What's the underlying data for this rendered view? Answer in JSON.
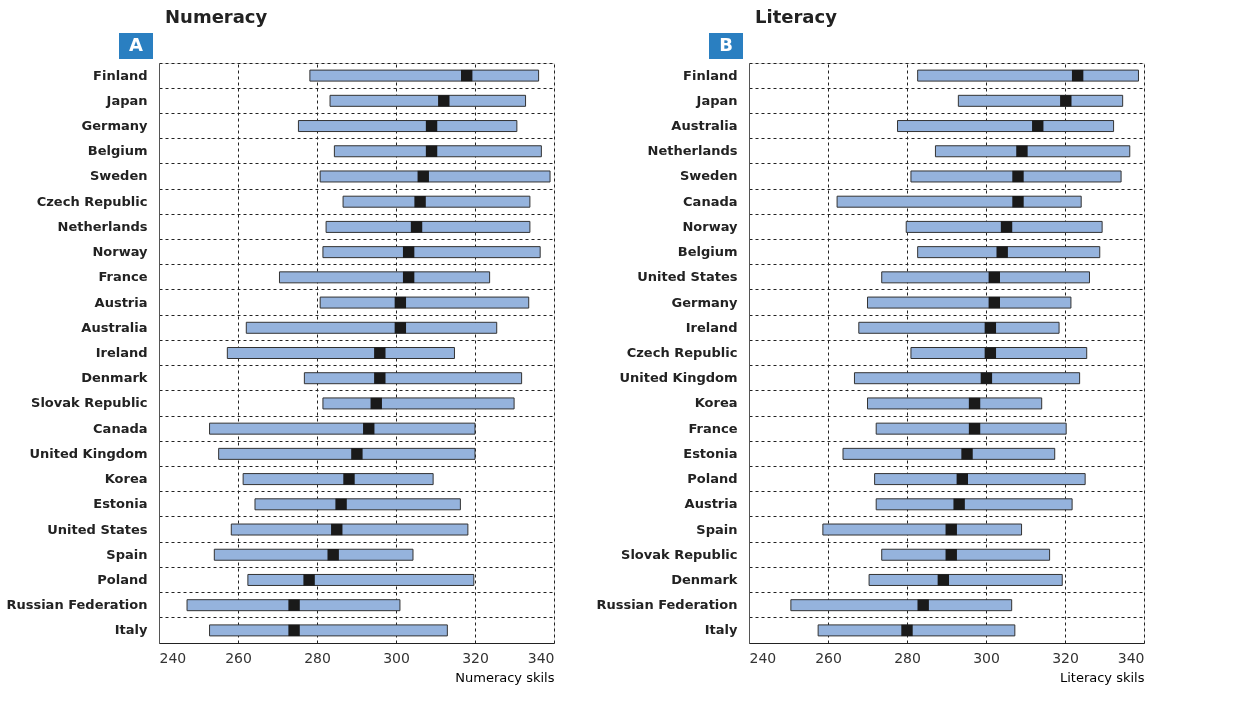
{
  "chart_data": [
    {
      "type": "bar",
      "orientation": "horizontal",
      "title": "Numeracy",
      "annotations": [
        "A"
      ],
      "xlabel": "Numeracy skils",
      "categories": [
        "Finland",
        "Japan",
        "Germany",
        "Belgium",
        "Sweden",
        "Czech Republic",
        "Netherlands",
        "Norway",
        "France",
        "Austria",
        "Australia",
        "Ireland",
        "Denmark",
        "Slovak Republic",
        "Canada",
        "United Kingdom",
        "Korea",
        "Estonia",
        "United States",
        "Spain",
        "Poland",
        "Russian Federation",
        "Italy"
      ],
      "series": [
        {
          "color": "#95b3dd",
          "base": [
            278.2,
            283.3,
            275.3,
            284.4,
            280.8,
            286.6,
            282.3,
            281.5,
            270.5,
            280.8,
            262.1,
            257.3,
            276.8,
            281.5,
            252.8,
            255.1,
            261.3,
            264.3,
            258.3,
            254,
            262.5,
            247.1,
            252.8
          ],
          "values": [
            57.9,
            49.5,
            55.3,
            52.4,
            58.2,
            47.3,
            51.6,
            55,
            53.2,
            52.8,
            63.4,
            57.5,
            55,
            48.4,
            67.2,
            64.9,
            48.1,
            52,
            59.9,
            50.3,
            57.2,
            53.9,
            60.2
          ]
        },
        {
          "type": "scatter",
          "color": "#1a1a1a",
          "marker": "square",
          "values": [
            317.9,
            312.1,
            309,
            309,
            306.9,
            306.1,
            305.2,
            303.2,
            303.2,
            301.1,
            301.1,
            295.9,
            295.9,
            295,
            293.1,
            290.1,
            288.1,
            286.1,
            285,
            284.1,
            278,
            274.2,
            274.2
          ]
        }
      ],
      "xlim": [
        240,
        340
      ],
      "xticks": [
        240,
        260,
        280,
        300,
        320,
        340
      ],
      "grid": true
    },
    {
      "type": "bar",
      "orientation": "horizontal",
      "title": "Literacy",
      "annotations": [
        "B"
      ],
      "xlabel": "Literacy skils",
      "categories": [
        "Finland",
        "Japan",
        "Australia",
        "Netherlands",
        "Sweden",
        "Canada",
        "Norway",
        "Belgium",
        "United States",
        "Germany",
        "Ireland",
        "Czech Republic",
        "United Kingdom",
        "Korea",
        "France",
        "Estonia",
        "Poland",
        "Austria",
        "Spain",
        "Slovak Republic",
        "Denmark",
        "Russian Federation",
        "Italy"
      ],
      "series": [
        {
          "color": "#95b3dd",
          "base": [
            282.7,
            293,
            277.6,
            287.2,
            281,
            262.3,
            279.8,
            282.7,
            273.6,
            270,
            267.8,
            281,
            266.7,
            270,
            272.2,
            263.8,
            271.8,
            272.2,
            258.7,
            273.6,
            270.4,
            250.6,
            257.5
          ],
          "values": [
            55.9,
            41.6,
            54.7,
            49.2,
            53.2,
            61.8,
            49.6,
            46.1,
            52.6,
            51.5,
            50.7,
            44.5,
            57,
            44.1,
            48.1,
            53.6,
            53.3,
            49.6,
            50.3,
            42.5,
            48.9,
            55.9,
            49.8
          ]
        },
        {
          "type": "scatter",
          "color": "#1a1a1a",
          "marker": "square",
          "values": [
            323.2,
            320.2,
            313.1,
            309.1,
            308.1,
            308.1,
            305.2,
            304.1,
            302.1,
            302.1,
            301.1,
            301.1,
            300.1,
            297.1,
            297.1,
            295.2,
            294,
            293.2,
            291.2,
            291.2,
            289.2,
            284.1,
            280
          ]
        }
      ],
      "xlim": [
        240,
        340
      ],
      "xticks": [
        240,
        260,
        280,
        300,
        320,
        340
      ],
      "grid": true
    }
  ]
}
